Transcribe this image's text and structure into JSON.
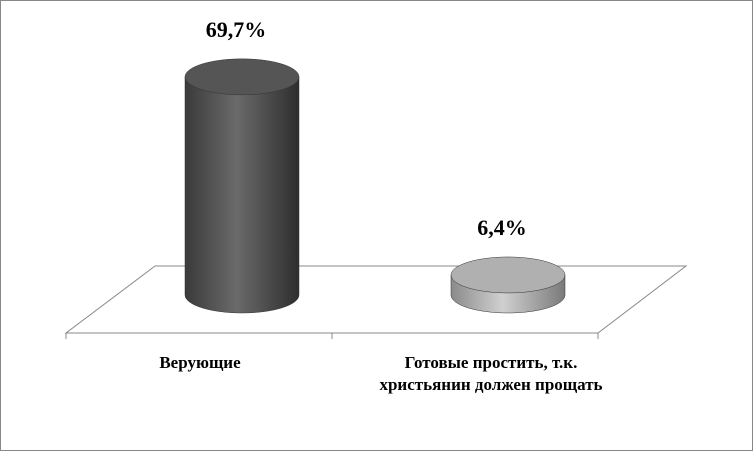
{
  "chart_data": {
    "type": "bar3d-cylinder",
    "categories": [
      "Верующие",
      "Готовые простить, т.к. христьянин должен прощать"
    ],
    "series": [
      {
        "values": [
          69.7,
          6.4
        ],
        "value_labels": [
          "69,7%",
          "6,4%"
        ],
        "colors": [
          "#555555",
          "#b0b0b0"
        ]
      }
    ]
  }
}
